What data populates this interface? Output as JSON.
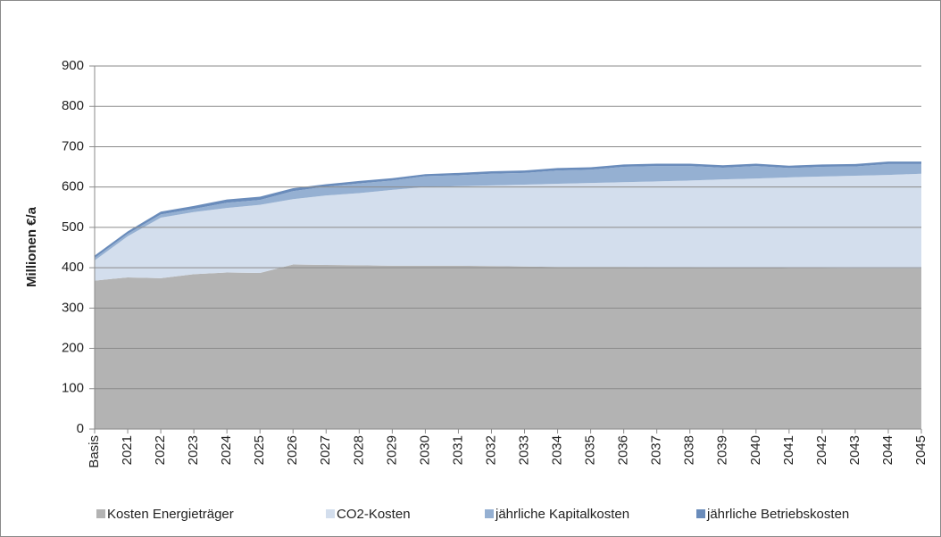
{
  "chart_data": {
    "type": "stacked_area",
    "y_label": "Millionen €/a",
    "categories": [
      "Basis",
      "2021",
      "2022",
      "2023",
      "2024",
      "2025",
      "2026",
      "2027",
      "2028",
      "2029",
      "2030",
      "2031",
      "2032",
      "2033",
      "2034",
      "2035",
      "2036",
      "2037",
      "2038",
      "2039",
      "2040",
      "2041",
      "2042",
      "2043",
      "2044",
      "2045"
    ],
    "series": [
      {
        "name": "Kosten Energieträger",
        "color": "#b3b3b3",
        "values": [
          368,
          376,
          374,
          384,
          388,
          387,
          408,
          407,
          406,
          405,
          405,
          405,
          404,
          403,
          402,
          402,
          402,
          401,
          401,
          400,
          400,
          399,
          399,
          398,
          398,
          398
        ]
      },
      {
        "name": "CO2-Kosten",
        "color": "#d3deed",
        "values": [
          50,
          102,
          150,
          154,
          160,
          169,
          162,
          172,
          179,
          188,
          195,
          197,
          200,
          203,
          206,
          208,
          210,
          213,
          215,
          219,
          221,
          225,
          227,
          230,
          232,
          235
        ]
      },
      {
        "name": "jährliche Kapitalkosten",
        "color": "#95b0d2",
        "values": [
          6,
          6,
          8,
          8,
          13,
          12,
          20,
          22,
          24,
          23,
          27,
          27,
          29,
          29,
          33,
          33,
          38,
          38,
          36,
          29,
          31,
          23,
          24,
          23,
          27,
          24
        ]
      },
      {
        "name": "jährliche Betriebskosten",
        "color": "#6a8cbb",
        "values": [
          6,
          6,
          7,
          7,
          8,
          8,
          7,
          6,
          6,
          6,
          5,
          6,
          6,
          6,
          6,
          6,
          6,
          6,
          6,
          6,
          6,
          6,
          6,
          6,
          6,
          6
        ]
      }
    ],
    "ylim": [
      0,
      900
    ],
    "yticks": [
      0,
      100,
      200,
      300,
      400,
      500,
      600,
      700,
      800,
      900
    ],
    "grid": true,
    "legend": "bottom"
  }
}
